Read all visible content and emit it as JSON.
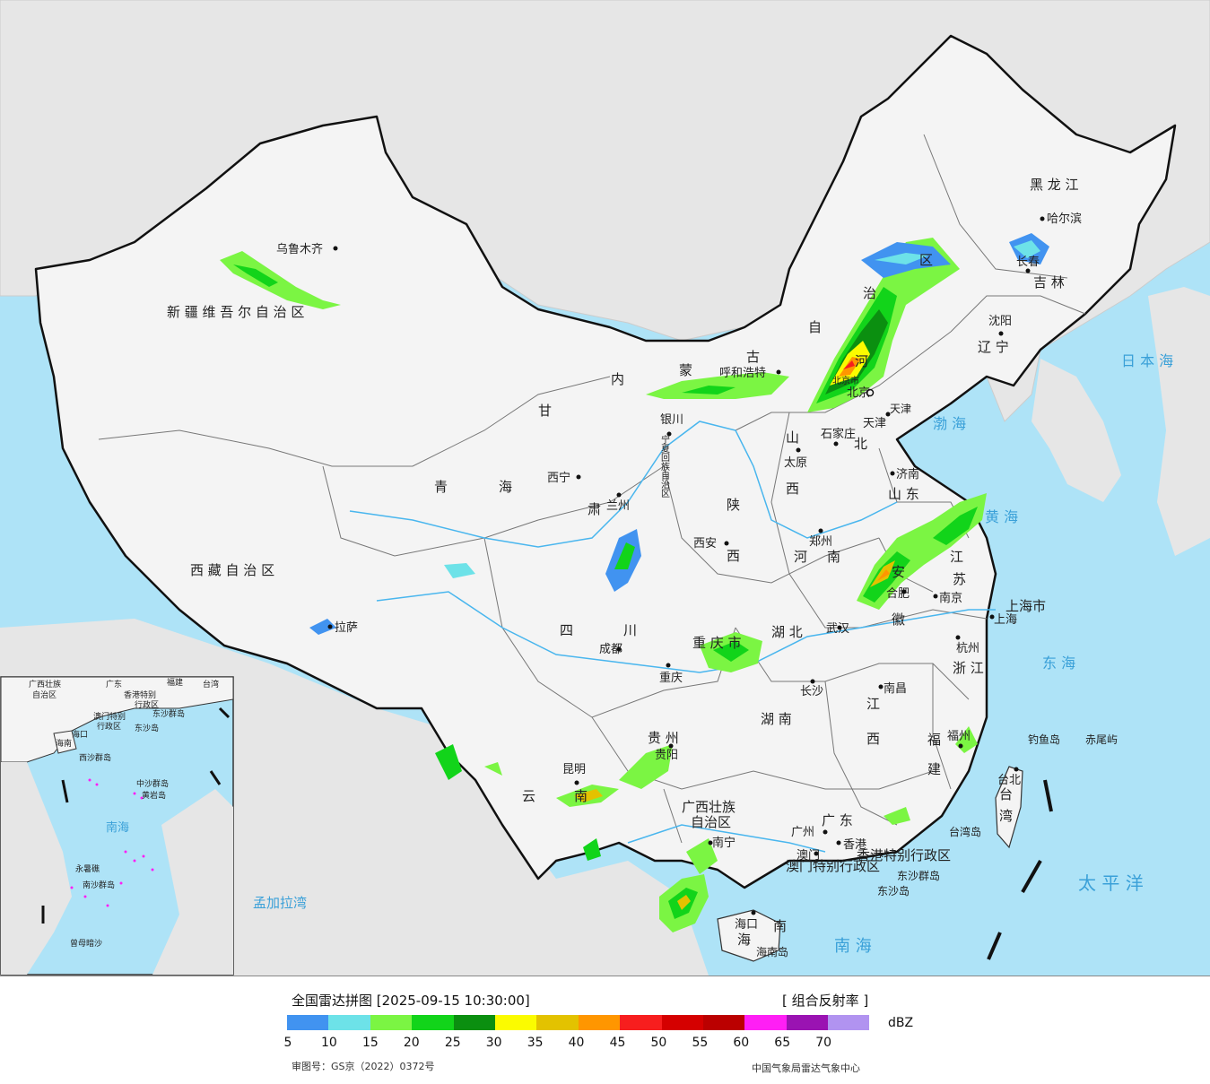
{
  "map": {
    "colors": {
      "sea": "#aee3f7",
      "land": "#f4f4f4",
      "foreign": "#e6e6e6",
      "border": "#111111",
      "province": "#777777",
      "river": "#49b6ee"
    },
    "provinces": [
      {
        "id": "xinjiang",
        "name": "新 疆 维 吾 尔 自 治 区"
      },
      {
        "id": "xizang",
        "name": "西 藏 自 治 区"
      },
      {
        "id": "qinghai1",
        "name": "青"
      },
      {
        "id": "qinghai2",
        "name": "海"
      },
      {
        "id": "gansu",
        "name": "甘"
      },
      {
        "id": "gansu2",
        "name": "肃"
      },
      {
        "id": "nmg1",
        "name": "内"
      },
      {
        "id": "nmg2",
        "name": "蒙"
      },
      {
        "id": "nmg3",
        "name": "古"
      },
      {
        "id": "nmg4",
        "name": "自"
      },
      {
        "id": "nmg5",
        "name": "治"
      },
      {
        "id": "nmg6",
        "name": "区"
      },
      {
        "id": "ningxia",
        "name": "宁夏回族自治区"
      },
      {
        "id": "shaanxi1",
        "name": "陕"
      },
      {
        "id": "shaanxi2",
        "name": "西"
      },
      {
        "id": "shanxi1",
        "name": "山"
      },
      {
        "id": "shanxi2",
        "name": "西"
      },
      {
        "id": "hebei1",
        "name": "河"
      },
      {
        "id": "hebei2",
        "name": "北"
      },
      {
        "id": "henan1",
        "name": "河"
      },
      {
        "id": "henan2",
        "name": "南"
      },
      {
        "id": "shandong",
        "name": "山 东"
      },
      {
        "id": "heilongjiang",
        "name": "黑 龙 江"
      },
      {
        "id": "jilin",
        "name": "吉 林"
      },
      {
        "id": "liaoning",
        "name": "辽 宁"
      },
      {
        "id": "sichuan1",
        "name": "四"
      },
      {
        "id": "sichuan2",
        "name": "川"
      },
      {
        "id": "chongqing",
        "name": "重 庆 市"
      },
      {
        "id": "hubei",
        "name": "湖 北"
      },
      {
        "id": "hunan",
        "name": "湖 南"
      },
      {
        "id": "jiangxi1",
        "name": "江"
      },
      {
        "id": "jiangxi2",
        "name": "西"
      },
      {
        "id": "anhui1",
        "name": "安"
      },
      {
        "id": "anhui2",
        "name": "徽"
      },
      {
        "id": "jiangsu1",
        "name": "江"
      },
      {
        "id": "jiangsu2",
        "name": "苏"
      },
      {
        "id": "zhejiang",
        "name": "浙 江"
      },
      {
        "id": "fujian1",
        "name": "福"
      },
      {
        "id": "fujian2",
        "name": "建"
      },
      {
        "id": "guizhou",
        "name": "贵 州"
      },
      {
        "id": "yunnan1",
        "name": "云"
      },
      {
        "id": "yunnan2",
        "name": "南"
      },
      {
        "id": "guangxi1",
        "name": "广西壮族"
      },
      {
        "id": "guangxi2",
        "name": "自治区"
      },
      {
        "id": "guangdong",
        "name": "广 东"
      },
      {
        "id": "hainan1",
        "name": "海"
      },
      {
        "id": "hainan2",
        "name": "南"
      },
      {
        "id": "taiwan1",
        "name": "台"
      },
      {
        "id": "taiwan2",
        "name": "湾"
      },
      {
        "id": "shanghai",
        "name": "上海市"
      },
      {
        "id": "hk",
        "name": "香港特别行政区"
      },
      {
        "id": "macao",
        "name": "澳门特别行政区"
      },
      {
        "id": "tianjin",
        "name": "天津"
      },
      {
        "id": "beijing",
        "name": "北京市"
      }
    ],
    "cities": [
      {
        "id": "urumqi",
        "name": "乌鲁木齐"
      },
      {
        "id": "lhasa",
        "name": "拉萨"
      },
      {
        "id": "xining",
        "name": "西宁"
      },
      {
        "id": "lanzhou",
        "name": "兰州"
      },
      {
        "id": "yinchuan",
        "name": "银川"
      },
      {
        "id": "hohhot",
        "name": "呼和浩特"
      },
      {
        "id": "beijingcity",
        "name": "北京"
      },
      {
        "id": "tianjincity",
        "name": "天津"
      },
      {
        "id": "shijiazhuang",
        "name": "石家庄"
      },
      {
        "id": "taiyuan",
        "name": "太原"
      },
      {
        "id": "jinan",
        "name": "济南"
      },
      {
        "id": "zhengzhou",
        "name": "郑州"
      },
      {
        "id": "xian",
        "name": "西安"
      },
      {
        "id": "chengdu",
        "name": "成都"
      },
      {
        "id": "chongqingcity",
        "name": "重庆"
      },
      {
        "id": "wuhan",
        "name": "武汉"
      },
      {
        "id": "hefei",
        "name": "合肥"
      },
      {
        "id": "nanjing",
        "name": "南京"
      },
      {
        "id": "shanghaicity",
        "name": "上海"
      },
      {
        "id": "hangzhou",
        "name": "杭州"
      },
      {
        "id": "nanchang",
        "name": "南昌"
      },
      {
        "id": "changsha",
        "name": "长沙"
      },
      {
        "id": "fuzhou",
        "name": "福州"
      },
      {
        "id": "guiyang",
        "name": "贵阳"
      },
      {
        "id": "kunming",
        "name": "昆明"
      },
      {
        "id": "nanning",
        "name": "南宁"
      },
      {
        "id": "guangzhou",
        "name": "广州"
      },
      {
        "id": "hongkong",
        "name": "香港"
      },
      {
        "id": "macaocity",
        "name": "澳门"
      },
      {
        "id": "haikou",
        "name": "海口"
      },
      {
        "id": "taipei",
        "name": "台北"
      },
      {
        "id": "shenyang",
        "name": "沈阳"
      },
      {
        "id": "changchun",
        "name": "长春"
      },
      {
        "id": "harbin",
        "name": "哈尔滨"
      }
    ],
    "islands": [
      {
        "id": "diaoyu",
        "name": "钓鱼岛"
      },
      {
        "id": "chiwei",
        "name": "赤尾屿"
      },
      {
        "id": "taiwandao",
        "name": "台湾岛"
      },
      {
        "id": "hainandao",
        "name": "海南岛"
      },
      {
        "id": "dongsha",
        "name": "东沙群岛"
      },
      {
        "id": "dongsha2",
        "name": "东沙岛"
      }
    ],
    "seas": [
      {
        "id": "bohai",
        "name": "渤 海"
      },
      {
        "id": "huanghai",
        "name": "黄 海"
      },
      {
        "id": "donghai",
        "name": "东 海"
      },
      {
        "id": "nanhai",
        "name": "南 海"
      },
      {
        "id": "riben",
        "name": "日 本 海"
      },
      {
        "id": "taipingyang",
        "name": "太 平 洋"
      },
      {
        "id": "mengjiala",
        "name": "孟加拉湾"
      }
    ],
    "inset": {
      "labels": [
        "广西壮族",
        "自治区",
        "广东",
        "福建",
        "台湾",
        "香港特别",
        "行政区",
        "澳门特别",
        "行政区",
        "东沙群岛",
        "东沙岛",
        "海南",
        "海口",
        "西沙群岛",
        "中沙群岛",
        "黄岩岛",
        "南海",
        "永暑礁",
        "南沙群岛",
        "曾母暗沙"
      ]
    }
  },
  "legend": {
    "title": "全国雷达拼图 [2025-09-15 10:30:00]",
    "product": "[ 组合反射率 ]",
    "unit": "dBZ",
    "ticks": [
      "5",
      "10",
      "15",
      "20",
      "25",
      "30",
      "35",
      "40",
      "45",
      "50",
      "55",
      "60",
      "65",
      "70"
    ],
    "colors": [
      "#4193f0",
      "#6de2e8",
      "#7bf543",
      "#12d41a",
      "#0b8f10",
      "#fbfb00",
      "#e3c200",
      "#ff9600",
      "#f71e1e",
      "#d50000",
      "#bb0000",
      "#ff1ff5",
      "#9a13b2",
      "#b193f0"
    ],
    "approval": "审图号：GS京（2022）0372号",
    "source": "中国气象局雷达气象中心"
  }
}
